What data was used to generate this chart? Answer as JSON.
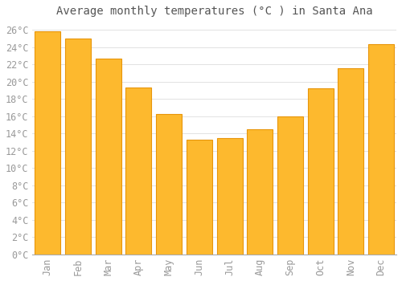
{
  "title": "Average monthly temperatures (°C ) in Santa Ana",
  "months": [
    "Jan",
    "Feb",
    "Mar",
    "Apr",
    "May",
    "Jun",
    "Jul",
    "Aug",
    "Sep",
    "Oct",
    "Nov",
    "Dec"
  ],
  "values": [
    25.8,
    25.0,
    22.7,
    19.3,
    16.2,
    13.3,
    13.5,
    14.5,
    16.0,
    19.2,
    21.5,
    24.3
  ],
  "bar_color": "#FDB92E",
  "bar_edge_color": "#E8950A",
  "background_color": "#FFFFFF",
  "plot_bg_color": "#FFFFFF",
  "grid_color": "#DDDDDD",
  "ylim": [
    0,
    27
  ],
  "yticks": [
    0,
    2,
    4,
    6,
    8,
    10,
    12,
    14,
    16,
    18,
    20,
    22,
    24,
    26
  ],
  "title_fontsize": 10,
  "tick_fontsize": 8.5,
  "tick_color": "#999999",
  "title_color": "#555555",
  "font_family": "monospace",
  "bar_width": 0.85
}
